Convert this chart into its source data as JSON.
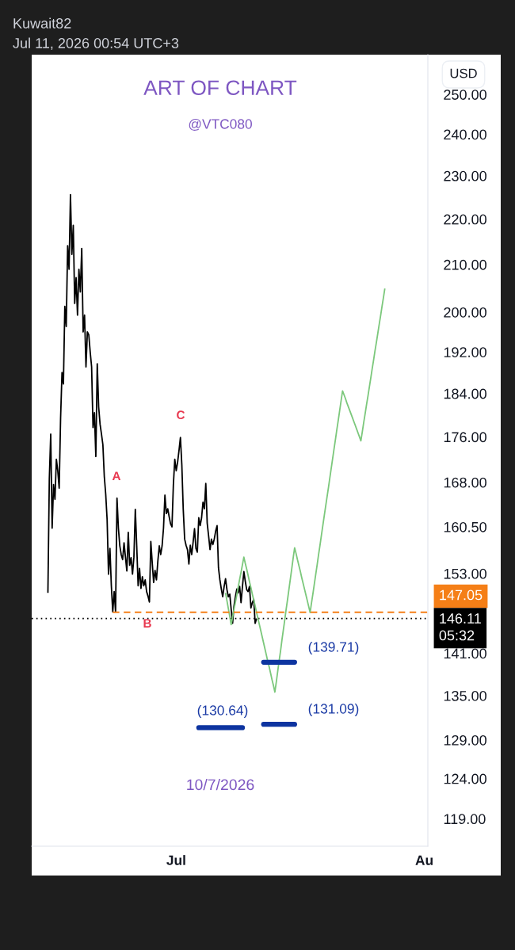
{
  "chart_data": {
    "type": "line",
    "title": "ART OF CHART",
    "subtitle": "@VTC080",
    "ylabel": "USD",
    "categories": [
      null,
      null,
      null,
      null,
      null,
      null,
      null,
      null,
      null,
      null,
      null,
      null,
      null,
      null,
      null,
      null,
      null,
      null,
      null,
      null,
      null,
      null,
      null,
      null,
      null,
      null,
      null,
      null,
      null,
      null,
      null,
      null,
      null,
      null,
      null,
      null,
      null,
      null,
      null,
      null,
      null,
      null,
      null,
      null,
      null,
      null,
      null,
      null,
      null,
      null,
      null,
      null,
      null,
      null,
      null,
      null,
      null,
      null,
      null,
      null,
      null,
      null,
      null,
      null,
      null,
      null,
      null,
      null,
      null,
      null,
      null,
      null,
      null,
      null,
      null,
      null,
      null,
      null,
      null,
      null,
      null,
      null,
      null,
      null,
      null,
      null,
      null,
      null,
      null,
      null,
      null,
      null,
      null,
      null,
      null,
      null,
      null,
      null,
      null,
      null,
      null,
      null,
      "Jul",
      null,
      null,
      null,
      null,
      null,
      null,
      null,
      null,
      null,
      null,
      null,
      null,
      null,
      null,
      null,
      null,
      null,
      null,
      null,
      null,
      null,
      null,
      null,
      null,
      null,
      null,
      null,
      null,
      null,
      null,
      null,
      null,
      null,
      null,
      null,
      null,
      null,
      null,
      null,
      null,
      null,
      null,
      null,
      null,
      null,
      null,
      null,
      null,
      null,
      null,
      null,
      null,
      null,
      null,
      null,
      null,
      null,
      null,
      null,
      null,
      null,
      null,
      null,
      null,
      null,
      null,
      null,
      null,
      null,
      null,
      null,
      null,
      null,
      null,
      null,
      null,
      null,
      null,
      null,
      null,
      null,
      null,
      null,
      null,
      null,
      null,
      null,
      null,
      null,
      null,
      null,
      null,
      null,
      null,
      null,
      null,
      null,
      null,
      null,
      null,
      null,
      null,
      null,
      null,
      null,
      null,
      null,
      null,
      null,
      null,
      null,
      null,
      null,
      null,
      null,
      null,
      null,
      null,
      null,
      null,
      null,
      null,
      null,
      null,
      null,
      null,
      null,
      null,
      null,
      null,
      null,
      null,
      null,
      null,
      null,
      null,
      null,
      null,
      null,
      null,
      null,
      null,
      null,
      null,
      null,
      null,
      null,
      null,
      null,
      null,
      null,
      null,
      null,
      null,
      null,
      null,
      null,
      null,
      null,
      null,
      null,
      null,
      null,
      null,
      null,
      null,
      null,
      null,
      null,
      null,
      null,
      null,
      null,
      null,
      null,
      "Au",
      null,
      null
    ],
    "series": [
      {
        "color": "#000000",
        "values": [
          null,
          null,
          null,
          null,
          null,
          null,
          null,
          null,
          null,
          null,
          null,
          150.0,
          168.6,
          176.5,
          160.3,
          167.6,
          165.1,
          172.0,
          170.0,
          167.0,
          179.4,
          188.0,
          185.8,
          201.2,
          197.1,
          214.1,
          209.0,
          225.6,
          212.2,
          218.6,
          201.8,
          207.2,
          199.4,
          209.0,
          204.2,
          213.5,
          196.0,
          199.4,
          189.1,
          196.0,
          195.4,
          192.0,
          189.1,
          177.7,
          180.4,
          172.5,
          189.7,
          181.5,
          178.3,
          176.5,
          174.6,
          169.0,
          166.0,
          161.7,
          152.9,
          157.0,
          151.1,
          147.1,
          150.2,
          147.1,
          165.3,
          160.3,
          157.4,
          156.0,
          155.2,
          157.9,
          155.6,
          153.4,
          159.6,
          154.3,
          155.5,
          152.9,
          155.6,
          163.4,
          157.4,
          151.1,
          153.8,
          150.7,
          152.5,
          151.1,
          152.0,
          150.2,
          149.5,
          148.6,
          158.1,
          154.7,
          151.6,
          153.5,
          152.0,
          155.0,
          157.4,
          156.0,
          157.4,
          160.3,
          165.8,
          162.7,
          163.5,
          162.2,
          161.0,
          160.5,
          167.6,
          172.0,
          170.0,
          171.5,
          173.6,
          175.9,
          171.0,
          163.4,
          158.5,
          157.5,
          156.8,
          154.5,
          157.5,
          156.0,
          158.0,
          160.2,
          157.0,
          156.4,
          162.0,
          160.7,
          162.0,
          164.6,
          163.5,
          167.8,
          161.1,
          159.0,
          156.8,
          158.5,
          157.6,
          158.5,
          159.8,
          160.7,
          153.9,
          152.0,
          150.6,
          149.4,
          151.0,
          152.2,
          150.5,
          149.4,
          149.8,
          147.5,
          145.4,
          148.0,
          149.4,
          150.6,
          150.0,
          151.0,
          148.5,
          151.0,
          153.3,
          151.8,
          150.5,
          150.2,
          151.0,
          147.7,
          148.5,
          149.0,
          145.4,
          146.11,
          null,
          null,
          null,
          null,
          null,
          null,
          null,
          null,
          null,
          null,
          null,
          null,
          null,
          null,
          null,
          null,
          null,
          null,
          null,
          null,
          null,
          null,
          null,
          null,
          null,
          null,
          null,
          null,
          null,
          null,
          null,
          null,
          null,
          null,
          null,
          null,
          null,
          null,
          null,
          null,
          null,
          null,
          null,
          null,
          null,
          null,
          null,
          null,
          null,
          null,
          null,
          null,
          null,
          null,
          null,
          null,
          null,
          null,
          null,
          null,
          null,
          null,
          null,
          null,
          null,
          null,
          null,
          null,
          null,
          null,
          null,
          null,
          null,
          null,
          null,
          null,
          null,
          null,
          null,
          null,
          null,
          null,
          null,
          null,
          null,
          null,
          null,
          null,
          null,
          null,
          null,
          null,
          null,
          null,
          null,
          null,
          null,
          null,
          null,
          null,
          null,
          null,
          null,
          null,
          null,
          null,
          null,
          null,
          null,
          null,
          null,
          null,
          null,
          null,
          null,
          null,
          null,
          null,
          null,
          null,
          null
        ]
      },
      {
        "color": "#7cc87c",
        "values": [
          null,
          null,
          null,
          null,
          null,
          null,
          null,
          null,
          null,
          null,
          null,
          null,
          null,
          null,
          null,
          null,
          null,
          null,
          null,
          null,
          null,
          null,
          null,
          null,
          null,
          null,
          null,
          null,
          null,
          null,
          null,
          null,
          null,
          null,
          null,
          null,
          null,
          null,
          null,
          null,
          null,
          null,
          null,
          null,
          null,
          null,
          null,
          null,
          null,
          null,
          null,
          null,
          null,
          null,
          null,
          null,
          null,
          null,
          null,
          null,
          null,
          null,
          null,
          null,
          null,
          null,
          null,
          null,
          null,
          null,
          null,
          null,
          null,
          null,
          null,
          null,
          null,
          null,
          null,
          null,
          null,
          null,
          null,
          null,
          null,
          null,
          null,
          null,
          null,
          null,
          null,
          null,
          null,
          null,
          null,
          null,
          null,
          null,
          null,
          null,
          null,
          null,
          null,
          null,
          null,
          null,
          null,
          null,
          null,
          null,
          null,
          null,
          null,
          null,
          null,
          null,
          null,
          null,
          null,
          null,
          null,
          null,
          null,
          null,
          null,
          null,
          null,
          null,
          null,
          null,
          null,
          null,
          null,
          null,
          null,
          null,
          null,
          150.0,
          148.8,
          147.6,
          146.4,
          145.2,
          146.3,
          147.5,
          148.6,
          149.7,
          150.9,
          152.1,
          153.2,
          154.4,
          155.6,
          154.6,
          153.7,
          152.7,
          151.7,
          150.8,
          149.8,
          148.9,
          148.0,
          147.0,
          146.1,
          145.2,
          144.3,
          143.4,
          142.5,
          141.6,
          140.7,
          139.8,
          139.0,
          138.1,
          137.2,
          136.4,
          135.5,
          136.9,
          138.4,
          139.9,
          141.3,
          142.9,
          144.4,
          145.9,
          147.5,
          149.0,
          150.6,
          152.2,
          153.8,
          155.5,
          157.1,
          156.2,
          155.2,
          154.3,
          153.4,
          152.4,
          151.5,
          150.6,
          149.7,
          148.8,
          147.9,
          147.0,
          148.5,
          149.9,
          151.4,
          152.9,
          154.4,
          156.0,
          157.5,
          159.1,
          160.7,
          162.3,
          163.9,
          165.5,
          167.1,
          168.8,
          170.5,
          172.2,
          173.9,
          175.6,
          177.4,
          179.1,
          180.9,
          182.7,
          184.5,
          183.8,
          183.1,
          182.3,
          181.6,
          180.9,
          180.2,
          179.5,
          178.8,
          178.1,
          177.4,
          176.7,
          176.0,
          175.3,
          176.9,
          178.6,
          180.2,
          181.9,
          183.5,
          185.2,
          186.9,
          188.7,
          190.4,
          192.2,
          193.9,
          195.7,
          197.5,
          199.3,
          201.2,
          203.0,
          204.9,
          null,
          null,
          null,
          null,
          null,
          null,
          null,
          null,
          null,
          null,
          null,
          null,
          null,
          null,
          null,
          null,
          null,
          null,
          null,
          null,
          null,
          null,
          null,
          null,
          null,
          null,
          null,
          null,
          null,
          null
        ]
      },
      {
        "color": "#f57f17",
        "line_style": "dashed",
        "values": [
          null,
          null,
          null,
          null,
          null,
          null,
          null,
          null,
          null,
          null,
          null,
          null,
          null,
          null,
          null,
          null,
          null,
          null,
          null,
          null,
          null,
          null,
          null,
          null,
          null,
          null,
          null,
          null,
          null,
          null,
          null,
          null,
          null,
          null,
          null,
          null,
          null,
          null,
          null,
          null,
          null,
          null,
          null,
          null,
          null,
          null,
          null,
          null,
          null,
          null,
          null,
          null,
          null,
          null,
          null,
          null,
          null,
          147.05,
          147.05,
          147.05,
          147.05,
          147.05,
          147.05,
          147.05,
          147.05,
          147.05,
          147.05,
          147.05,
          147.05,
          147.05,
          147.05,
          147.05,
          147.05,
          147.05,
          147.05,
          147.05,
          147.05,
          147.05,
          147.05,
          147.05,
          147.05,
          147.05,
          147.05,
          147.05,
          147.05,
          147.05,
          147.05,
          147.05,
          147.05,
          147.05,
          147.05,
          147.05,
          147.05,
          147.05,
          147.05,
          147.05,
          147.05,
          147.05,
          147.05,
          147.05,
          147.05,
          147.05,
          147.05,
          147.05,
          147.05,
          147.05,
          147.05,
          147.05,
          147.05,
          147.05,
          147.05,
          147.05,
          147.05,
          147.05,
          147.05,
          147.05,
          147.05,
          147.05,
          147.05,
          147.05,
          147.05,
          147.05,
          147.05,
          147.05,
          147.05,
          147.05,
          147.05,
          147.05,
          147.05,
          147.05,
          147.05,
          147.05,
          147.05,
          147.05,
          147.05,
          147.05,
          147.05,
          147.05,
          147.05,
          147.05,
          147.05,
          147.05,
          147.05,
          147.05,
          147.05,
          147.05,
          147.05,
          147.05,
          147.05,
          147.05,
          147.05,
          147.05,
          147.05,
          147.05,
          147.05,
          147.05,
          147.05,
          147.05,
          147.05,
          147.05,
          147.05,
          147.05,
          147.05,
          147.05,
          147.05,
          147.05,
          147.05,
          147.05,
          147.05,
          147.05,
          147.05,
          147.05,
          147.05,
          147.05,
          147.05,
          147.05,
          147.05,
          147.05,
          147.05,
          147.05,
          147.05,
          147.05,
          147.05,
          147.05,
          147.05,
          147.05,
          147.05,
          147.05,
          147.05,
          147.05,
          147.05,
          147.05,
          147.05,
          147.05,
          147.05,
          147.05,
          147.05,
          147.05,
          147.05,
          147.05,
          147.05,
          147.05,
          147.05,
          147.05,
          147.05,
          147.05,
          147.05,
          147.05,
          147.05,
          147.05,
          147.05,
          147.05,
          147.05,
          147.05,
          147.05,
          147.05,
          147.05,
          147.05,
          147.05,
          147.05,
          147.05,
          147.05,
          147.05,
          147.05,
          147.05,
          147.05,
          147.05,
          147.05,
          147.05,
          147.05,
          147.05,
          147.05,
          147.05,
          147.05,
          147.05,
          147.05,
          147.05,
          147.05,
          147.05,
          147.05,
          147.05,
          147.05,
          147.05,
          147.05,
          147.05,
          147.05,
          147.05,
          147.05,
          147.05,
          147.05,
          147.05,
          147.05,
          147.05,
          147.05,
          147.05,
          147.05,
          147.05,
          147.05,
          147.05,
          147.05,
          147.05,
          147.05,
          147.05,
          147.05,
          147.05,
          147.05,
          147.05,
          147.05,
          147.05,
          147.05,
          147.05,
          147.05,
          147.05,
          147.05,
          147.05,
          147.05,
          147.05,
          147.05,
          147.05,
          147.05,
          147.05
        ],
        "value_labels": [
          null,
          null,
          null,
          null,
          null,
          null,
          null,
          null,
          null,
          null,
          null,
          null,
          null,
          null,
          null,
          null,
          null,
          null,
          null,
          null,
          null,
          null,
          null,
          null,
          null,
          null,
          null,
          null,
          null,
          null,
          null,
          null,
          null,
          null,
          null,
          null,
          null,
          null,
          null,
          null,
          null,
          null,
          null,
          null,
          null,
          null,
          null,
          null,
          null,
          null,
          null,
          null,
          null,
          null,
          null,
          null,
          null,
          null,
          null,
          null,
          null,
          null,
          null,
          null,
          null,
          null,
          null,
          null,
          null,
          null,
          null,
          null,
          null,
          null,
          null,
          null,
          null,
          null,
          null,
          null,
          null,
          null,
          null,
          null,
          null,
          null,
          null,
          null,
          null,
          null,
          null,
          null,
          null,
          null,
          null,
          null,
          null,
          null,
          null,
          null,
          null,
          null,
          null,
          null,
          null,
          null,
          null,
          null,
          null,
          null,
          null,
          null,
          null,
          null,
          null,
          null,
          null,
          null,
          null,
          null,
          null,
          null,
          null,
          null,
          null,
          null,
          null,
          null,
          null,
          null,
          null,
          null,
          null,
          null,
          null,
          null,
          null,
          null,
          null,
          null,
          null,
          null,
          null,
          null,
          null,
          null,
          null,
          null,
          null,
          null,
          null,
          null,
          null,
          null,
          null,
          null,
          null,
          null,
          null,
          null,
          null,
          null,
          null,
          null,
          null,
          null,
          null,
          null,
          null,
          null,
          null,
          null,
          null,
          null,
          null,
          null,
          null,
          null,
          null,
          null,
          null,
          null,
          null,
          null,
          null,
          null,
          null,
          null,
          null,
          null,
          null,
          null,
          null,
          null,
          null,
          null,
          null,
          null,
          null,
          null,
          null,
          null,
          null,
          null,
          null,
          null,
          null,
          null,
          null,
          null,
          null,
          null,
          null,
          null,
          null,
          null,
          null,
          null,
          null,
          null,
          null,
          null,
          null,
          null,
          null,
          null,
          null,
          null,
          null,
          null,
          null,
          null,
          null,
          null,
          null,
          null,
          null,
          null,
          null,
          null,
          null,
          null,
          null,
          null,
          null,
          null,
          null,
          null,
          null,
          null,
          null,
          null,
          null,
          null,
          null,
          null,
          null,
          null,
          null,
          null,
          null,
          null,
          null,
          null,
          null,
          null,
          null,
          null,
          null,
          null,
          null,
          null,
          null,
          null,
          null,
          null,
          null,
          null,
          null,
          null,
          "147.05"
        ]
      },
      {
        "color": "#0d34a0",
        "values": [
          null,
          null,
          null,
          null,
          null,
          null,
          null,
          null,
          null,
          null,
          null,
          null,
          null,
          null,
          null,
          null,
          null,
          null,
          null,
          null,
          null,
          null,
          null,
          null,
          null,
          null,
          null,
          null,
          null,
          null,
          null,
          null,
          null,
          null,
          null,
          null,
          null,
          null,
          null,
          null,
          null,
          null,
          null,
          null,
          null,
          null,
          null,
          null,
          null,
          null,
          null,
          null,
          null,
          null,
          null,
          null,
          null,
          null,
          null,
          null,
          null,
          null,
          null,
          null,
          null,
          null,
          null,
          null,
          null,
          null,
          null,
          null,
          null,
          null,
          null,
          null,
          null,
          null,
          null,
          null,
          null,
          null,
          null,
          null,
          null,
          null,
          null,
          null,
          null,
          null,
          null,
          null,
          null,
          null,
          null,
          null,
          null,
          null,
          null,
          null,
          null,
          null,
          null,
          null,
          null,
          null,
          null,
          null,
          null,
          null,
          null,
          null,
          null,
          null,
          null,
          null,
          null,
          null,
          null,
          null,
          null,
          null,
          null,
          null,
          null,
          null,
          null,
          null,
          null,
          null,
          null,
          null,
          null,
          null,
          null,
          null,
          null,
          null,
          null,
          null,
          null,
          null,
          null,
          null,
          null,
          null,
          null,
          null,
          null,
          null,
          null,
          null,
          null,
          null,
          null,
          null,
          null,
          null,
          null,
          null,
          null,
          null,
          null,
          null,
          139.71,
          139.71,
          139.71,
          139.71,
          139.71,
          139.71,
          139.71,
          139.71,
          139.71,
          139.71,
          139.71,
          139.71,
          139.71,
          139.71,
          139.71,
          139.71,
          139.71,
          139.71,
          139.71,
          139.71,
          139.71,
          139.71,
          139.71,
          null,
          null,
          null,
          null,
          null,
          null,
          null,
          null,
          null,
          null,
          null,
          null,
          null,
          null,
          null,
          null,
          null,
          null,
          null,
          null,
          null,
          null,
          null,
          null,
          null,
          null,
          null,
          null,
          null,
          null,
          null,
          null,
          null,
          null,
          null,
          null,
          null,
          null,
          null,
          null,
          null,
          null,
          null,
          null,
          null,
          null,
          null,
          null,
          null,
          null,
          null,
          null,
          null,
          null,
          null,
          null,
          null,
          null,
          null,
          null,
          null,
          null,
          null,
          null,
          null,
          null,
          null,
          null,
          null,
          null,
          null,
          null,
          null,
          null,
          null,
          null,
          null,
          null,
          null,
          null,
          null,
          null,
          null,
          null,
          null,
          null,
          null,
          null,
          null,
          null,
          null,
          null,
          null,
          null
        ]
      },
      {
        "color": "#0d34a0",
        "values": [
          null,
          null,
          null,
          null,
          null,
          null,
          null,
          null,
          null,
          null,
          null,
          null,
          null,
          null,
          null,
          null,
          null,
          null,
          null,
          null,
          null,
          null,
          null,
          null,
          null,
          null,
          null,
          null,
          null,
          null,
          null,
          null,
          null,
          null,
          null,
          null,
          null,
          null,
          null,
          null,
          null,
          null,
          null,
          null,
          null,
          null,
          null,
          null,
          null,
          null,
          null,
          null,
          null,
          null,
          null,
          null,
          null,
          null,
          null,
          null,
          null,
          null,
          null,
          null,
          null,
          null,
          null,
          null,
          null,
          null,
          null,
          null,
          null,
          null,
          null,
          null,
          null,
          null,
          null,
          null,
          null,
          null,
          null,
          null,
          null,
          null,
          null,
          null,
          null,
          null,
          null,
          null,
          null,
          null,
          null,
          null,
          null,
          null,
          null,
          null,
          null,
          null,
          null,
          null,
          null,
          null,
          null,
          null,
          null,
          null,
          null,
          null,
          null,
          null,
          null,
          null,
          null,
          null,
          130.64,
          130.64,
          130.64,
          130.64,
          130.64,
          130.64,
          130.64,
          130.64,
          130.64,
          130.64,
          130.64,
          130.64,
          130.64,
          130.64,
          130.64,
          130.64,
          130.64,
          130.64,
          130.64,
          130.64,
          130.64,
          130.64,
          130.64,
          130.64,
          130.64,
          130.64,
          130.64,
          130.64,
          130.64,
          130.64,
          130.64,
          130.64,
          null,
          null,
          null,
          null,
          null,
          null,
          null,
          null,
          null,
          null,
          null,
          null,
          null,
          null,
          null,
          null,
          null,
          null,
          null,
          null,
          null,
          null,
          null,
          null,
          null,
          null,
          null,
          null,
          null,
          null,
          null,
          null,
          null,
          null,
          null,
          null,
          null,
          null,
          null,
          null,
          null,
          null,
          null,
          null,
          null,
          null,
          null,
          null,
          null,
          null,
          null,
          null,
          null,
          null,
          null,
          null,
          null,
          null,
          null,
          null,
          null,
          null,
          null,
          null,
          null,
          null,
          null,
          null,
          null,
          null,
          null,
          null,
          null,
          null,
          null,
          null,
          null,
          null,
          null,
          null,
          null,
          null,
          null,
          null,
          null,
          null,
          null,
          null,
          null,
          null,
          null,
          null,
          null,
          null,
          null,
          null,
          null,
          null,
          null,
          null,
          null,
          null,
          null,
          null,
          null,
          null,
          null,
          null,
          null,
          null,
          null,
          null,
          null,
          null,
          null,
          null,
          null,
          null,
          null,
          null,
          null,
          null,
          null,
          null,
          null,
          null,
          null,
          null,
          null,
          null,
          null
        ]
      },
      {
        "color": "#0d34a0",
        "values": [
          null,
          null,
          null,
          null,
          null,
          null,
          null,
          null,
          null,
          null,
          null,
          null,
          null,
          null,
          null,
          null,
          null,
          null,
          null,
          null,
          null,
          null,
          null,
          null,
          null,
          null,
          null,
          null,
          null,
          null,
          null,
          null,
          null,
          null,
          null,
          null,
          null,
          null,
          null,
          null,
          null,
          null,
          null,
          null,
          null,
          null,
          null,
          null,
          null,
          null,
          null,
          null,
          null,
          null,
          null,
          null,
          null,
          null,
          null,
          null,
          null,
          null,
          null,
          null,
          null,
          null,
          null,
          null,
          null,
          null,
          null,
          null,
          null,
          null,
          null,
          null,
          null,
          null,
          null,
          null,
          null,
          null,
          null,
          null,
          null,
          null,
          null,
          null,
          null,
          null,
          null,
          null,
          null,
          null,
          null,
          null,
          null,
          null,
          null,
          null,
          null,
          null,
          null,
          null,
          null,
          null,
          null,
          null,
          null,
          null,
          null,
          null,
          null,
          null,
          null,
          null,
          null,
          null,
          null,
          null,
          null,
          null,
          null,
          null,
          null,
          null,
          null,
          null,
          null,
          null,
          null,
          null,
          null,
          null,
          null,
          null,
          null,
          null,
          null,
          null,
          null,
          null,
          null,
          null,
          null,
          null,
          null,
          null,
          null,
          null,
          null,
          null,
          null,
          null,
          null,
          null,
          null,
          null,
          null,
          null,
          null,
          null,
          null,
          null,
          131.09,
          131.09,
          131.09,
          131.09,
          131.09,
          131.09,
          131.09,
          131.09,
          131.09,
          131.09,
          131.09,
          131.09,
          131.09,
          131.09,
          131.09,
          131.09,
          131.09,
          131.09,
          131.09,
          131.09,
          131.09,
          131.09,
          131.09,
          null,
          null,
          null,
          null,
          null,
          null,
          null,
          null,
          null,
          null,
          null,
          null,
          null,
          null,
          null,
          null,
          null,
          null,
          null,
          null,
          null,
          null,
          null,
          null,
          null,
          null,
          null,
          null,
          null,
          null,
          null,
          null,
          null,
          null,
          null,
          null,
          null,
          null,
          null,
          null,
          null,
          null,
          null,
          null,
          null,
          null,
          null,
          null,
          null,
          null,
          null,
          null,
          null,
          null,
          null,
          null,
          null,
          null,
          null,
          null,
          null,
          null,
          null,
          null,
          null,
          null,
          null,
          null,
          null,
          null,
          null,
          null,
          null,
          null,
          null,
          null,
          null,
          null,
          null,
          null,
          null,
          null,
          null,
          null,
          null,
          null,
          null,
          null,
          null,
          null,
          null,
          null,
          null,
          null
        ]
      }
    ],
    "ref_lines": [
      {
        "axis": "y",
        "value": 146.11,
        "label": "146.11\n05:32",
        "color": "#000000",
        "line_style": "dotted"
      }
    ],
    "annotations": [
      "Kuwait82",
      "Jul 11, 2026 00:54 UTC+3",
      "10/7/2026",
      "A",
      "B",
      "C",
      "(139.71)",
      "(130.64)",
      "(131.09)"
    ],
    "ylim": [
      115.7,
      260.4
    ],
    "log": true,
    "grid": false,
    "yticks": [
      {
        "value": 119,
        "label": "119.00"
      },
      {
        "value": 124,
        "label": "124.00"
      },
      {
        "value": 129,
        "label": "129.00"
      },
      {
        "value": 135,
        "label": "135.00"
      },
      {
        "value": 141,
        "label": "141.00"
      },
      {
        "value": 153,
        "label": "153.00"
      },
      {
        "value": 160.5,
        "label": "160.50"
      },
      {
        "value": 168,
        "label": "168.00"
      },
      {
        "value": 176,
        "label": "176.00"
      },
      {
        "value": 184,
        "label": "184.00"
      },
      {
        "value": 192,
        "label": "192.00"
      },
      {
        "value": 200,
        "label": "200.00"
      },
      {
        "value": 210,
        "label": "210.00"
      },
      {
        "value": 220,
        "label": "220.00"
      },
      {
        "value": 230,
        "label": "230.00"
      },
      {
        "value": 240,
        "label": "240.00"
      },
      {
        "value": 250,
        "label": "250.00"
      }
    ]
  }
}
